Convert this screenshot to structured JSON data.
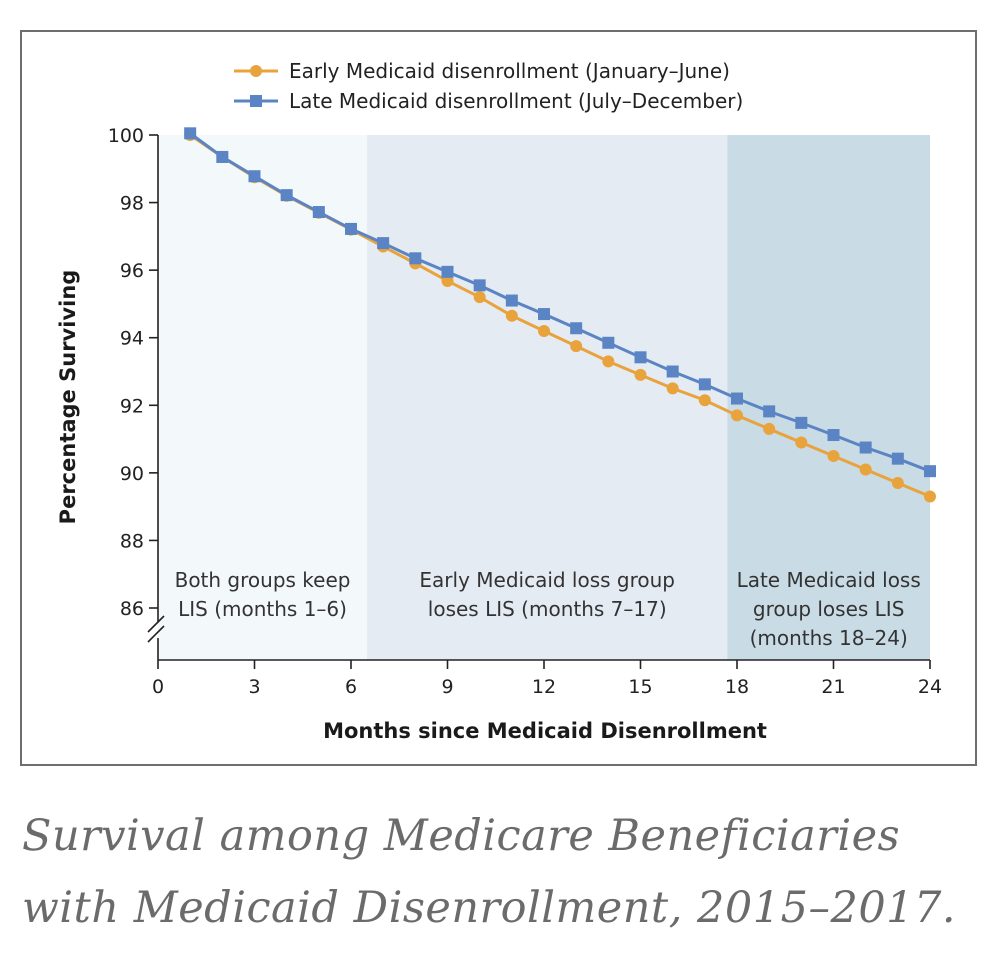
{
  "caption": {
    "line1": "Survival among Medicare Beneficiaries",
    "line2": "with Medicaid Disenrollment, 2015–2017."
  },
  "chart_data": {
    "type": "line",
    "xlabel": "Months since Medicaid Disenrollment",
    "ylabel": "Percentage Surviving",
    "xlim": [
      0,
      24
    ],
    "ylim": [
      84.5,
      100
    ],
    "axis_break": true,
    "xticks": [
      0,
      3,
      6,
      9,
      12,
      15,
      18,
      21,
      24
    ],
    "yticks": [
      86,
      88,
      90,
      92,
      94,
      96,
      98,
      100
    ],
    "grid": false,
    "legend_position": "top-center",
    "series": [
      {
        "name": "Early Medicaid disenrollment (January–June)",
        "color": "#e8a33d",
        "marker": "circle",
        "x": [
          1,
          2,
          3,
          4,
          5,
          6,
          7,
          8,
          9,
          10,
          11,
          12,
          13,
          14,
          15,
          16,
          17,
          18,
          19,
          20,
          21,
          22,
          23,
          24
        ],
        "values": [
          100.0,
          99.35,
          98.75,
          98.2,
          97.7,
          97.2,
          96.7,
          96.2,
          95.68,
          95.2,
          94.65,
          94.2,
          93.75,
          93.3,
          92.9,
          92.5,
          92.15,
          91.7,
          91.3,
          90.9,
          90.5,
          90.1,
          89.7,
          89.3
        ]
      },
      {
        "name": "Late Medicaid disenrollment (July–December)",
        "color": "#5b84c4",
        "marker": "square",
        "x": [
          1,
          2,
          3,
          4,
          5,
          6,
          7,
          8,
          9,
          10,
          11,
          12,
          13,
          14,
          15,
          16,
          17,
          18,
          19,
          20,
          21,
          22,
          23,
          24
        ],
        "values": [
          100.05,
          99.35,
          98.78,
          98.22,
          97.72,
          97.22,
          96.8,
          96.35,
          95.95,
          95.55,
          95.1,
          94.7,
          94.28,
          93.85,
          93.42,
          93.0,
          92.62,
          92.2,
          91.82,
          91.48,
          91.12,
          90.75,
          90.42,
          90.05
        ]
      }
    ],
    "regions": [
      {
        "start": 0,
        "end": 6.5,
        "color": "#f3f8fb",
        "lines": [
          "Both groups keep",
          "LIS (months 1–6)"
        ]
      },
      {
        "start": 6.5,
        "end": 17.7,
        "color": "#e4ebf2",
        "lines": [
          "Early Medicaid loss group",
          "loses LIS (months 7–17)"
        ]
      },
      {
        "start": 17.7,
        "end": 24,
        "color": "#c9dbe4",
        "lines": [
          "Late Medicaid loss",
          "group loses LIS",
          "(months 18–24)"
        ]
      }
    ]
  }
}
